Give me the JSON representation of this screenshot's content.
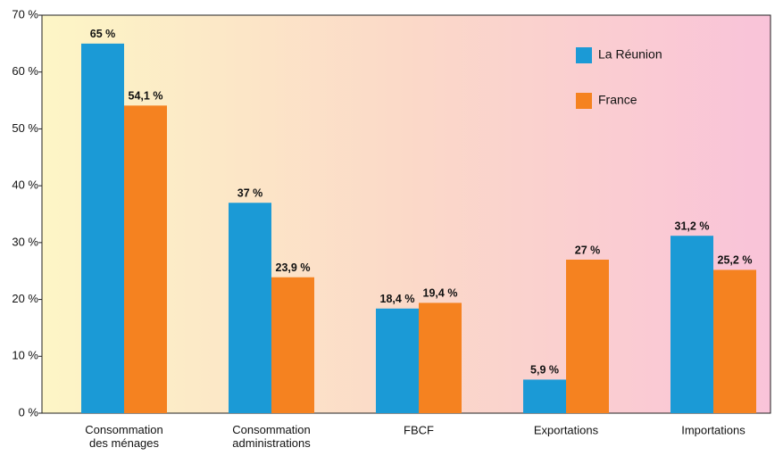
{
  "chart_data": {
    "type": "bar",
    "categories": [
      "Consommation\ndes ménages",
      "Consommation\nadministrations",
      "FBCF",
      "Exportations",
      "Importations"
    ],
    "series": [
      {
        "name": "La Réunion",
        "color": "#1b9ad6",
        "values": [
          65,
          37,
          18.4,
          5.9,
          31.2
        ],
        "value_labels": [
          "65 %",
          "37 %",
          "18,4 %",
          "5,9 %",
          "31,2 %"
        ]
      },
      {
        "name": "France",
        "color": "#f58220",
        "values": [
          54.1,
          23.9,
          19.4,
          27,
          25.2
        ],
        "value_labels": [
          "54,1 %",
          "23,9 %",
          "19,4 %",
          "27 %",
          "25,2 %"
        ]
      }
    ],
    "ylim": [
      0,
      70
    ],
    "yticks": [
      {
        "value": 0,
        "label": "0 %"
      },
      {
        "value": 10,
        "label": "10 %"
      },
      {
        "value": 20,
        "label": "20 %"
      },
      {
        "value": 30,
        "label": "30 %"
      },
      {
        "value": 40,
        "label": "40 %"
      },
      {
        "value": 50,
        "label": "50 %"
      },
      {
        "value": 60,
        "label": "60 %"
      },
      {
        "value": 70,
        "label": "70 %"
      }
    ],
    "legend": "top-right"
  }
}
